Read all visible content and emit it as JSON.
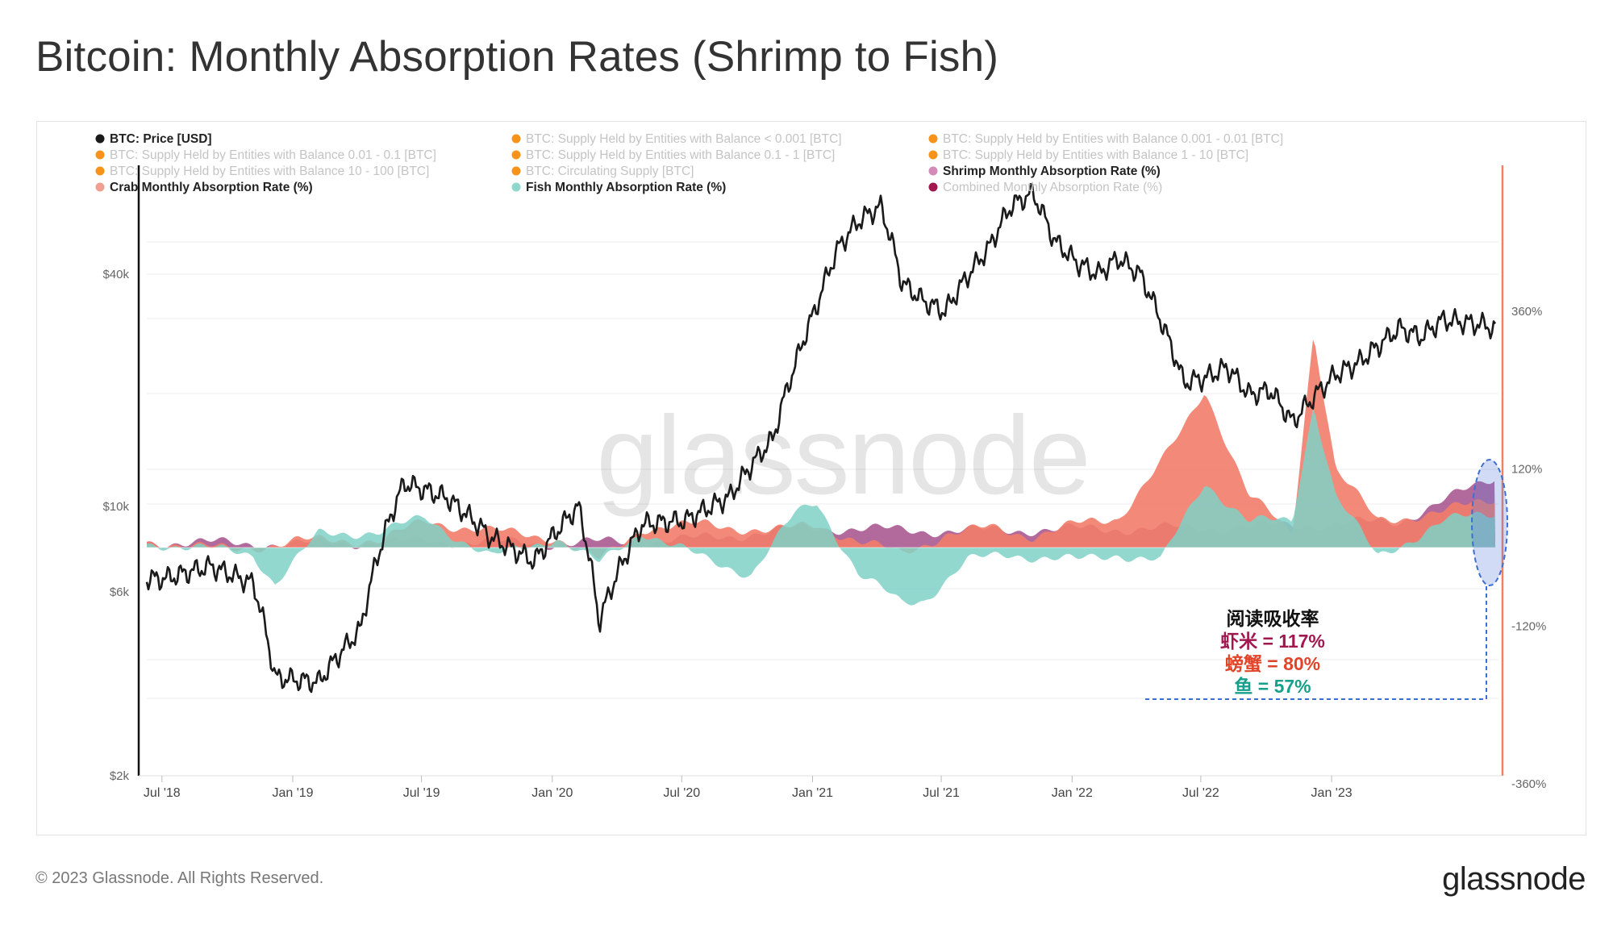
{
  "title": "Bitcoin: Monthly Absorption Rates (Shrimp to Fish)",
  "footer": "© 2023 Glassnode. All Rights Reserved.",
  "brand": "glassnode",
  "watermark": "glassnode",
  "colors": {
    "price": "#1a1a1a",
    "crab": "#f27d6a",
    "fish": "#7fd1c7",
    "shrimp": "#a4508b",
    "combined": "#a0184f",
    "supply_dot": "#f7931a",
    "right_axis": "#f08060",
    "annotation_box": "#3b6fd4"
  },
  "legend": [
    {
      "label": "BTC: Price [USD]",
      "dot": "#1a1a1a",
      "active": true
    },
    {
      "label": "BTC: Supply Held by Entities with Balance < 0.001 [BTC]",
      "dot": "#f7931a",
      "active": false
    },
    {
      "label": "BTC: Supply Held by Entities with Balance 0.001 - 0.01 [BTC]",
      "dot": "#f7931a",
      "active": false
    },
    {
      "label": "BTC: Supply Held by Entities with Balance 0.01 - 0.1 [BTC]",
      "dot": "#f7931a",
      "active": false
    },
    {
      "label": "BTC: Supply Held by Entities with Balance 0.1 - 1 [BTC]",
      "dot": "#f7931a",
      "active": false
    },
    {
      "label": "BTC: Supply Held by Entities with Balance 1 - 10 [BTC]",
      "dot": "#f7931a",
      "active": false
    },
    {
      "label": "BTC: Supply Held by Entities with Balance 10 - 100 [BTC]",
      "dot": "#f7931a",
      "active": false
    },
    {
      "label": "BTC: Circulating Supply [BTC]",
      "dot": "#f7931a",
      "active": false
    },
    {
      "label": "Shrimp Monthly Absorption Rate (%)",
      "dot": "#d38bb8",
      "active": true
    },
    {
      "label": "Crab Monthly Absorption Rate (%)",
      "dot": "#f0a090",
      "active": true
    },
    {
      "label": "Fish Monthly Absorption Rate (%)",
      "dot": "#8fd6cc",
      "active": true
    },
    {
      "label": "Combined Monthly Absorption Rate (%)",
      "dot": "#a0184f",
      "active": false
    }
  ],
  "annotation": {
    "heading": "阅读吸收率",
    "lines": [
      {
        "text": "虾米 = 117%",
        "color": "#a0184f"
      },
      {
        "text": "螃蟹 = 80%",
        "color": "#e0452a"
      },
      {
        "text": "鱼 = 57%",
        "color": "#16a08c"
      }
    ]
  },
  "chart_data": {
    "type": "line",
    "x_ticks": [
      "Jul '18",
      "Jan '19",
      "Jul '19",
      "Jan '20",
      "Jul '20",
      "Jan '21",
      "Jul '21",
      "Jan '22",
      "Jul '22",
      "Jan '23"
    ],
    "y_left": {
      "scale": "log",
      "ticks": [
        "$40k",
        "$10k",
        "$6k",
        "$2k"
      ],
      "tick_values": [
        40000,
        10000,
        6000,
        2000
      ]
    },
    "y_right": {
      "ticks": [
        "360%",
        "120%",
        "-120%",
        "-360%"
      ],
      "tick_values": [
        360,
        120,
        -120,
        -360
      ],
      "range": [
        -360,
        360
      ]
    },
    "series": [
      {
        "name": "BTC: Price [USD]",
        "axis": "left",
        "type": "line",
        "dates": [
          "2018-07",
          "2018-09",
          "2018-11",
          "2018-12",
          "2019-02",
          "2019-04",
          "2019-06",
          "2019-08",
          "2019-10",
          "2019-12",
          "2020-02",
          "2020-03",
          "2020-05",
          "2020-07",
          "2020-09",
          "2020-11",
          "2020-12",
          "2021-01",
          "2021-02",
          "2021-03",
          "2021-04",
          "2021-05",
          "2021-06",
          "2021-07",
          "2021-09",
          "2021-10",
          "2021-11",
          "2021-12",
          "2022-01",
          "2022-02",
          "2022-03",
          "2022-04",
          "2022-05",
          "2022-06",
          "2022-07",
          "2022-08",
          "2022-09",
          "2022-10",
          "2022-11",
          "2023-01",
          "2023-02",
          "2023-03",
          "2023-04",
          "2023-05",
          "2023-06",
          "2023-08",
          "2023-09"
        ],
        "values": [
          6500,
          7000,
          6300,
          3600,
          3500,
          4800,
          11500,
          10500,
          8300,
          7200,
          10000,
          5000,
          9000,
          9200,
          10600,
          15000,
          23000,
          33000,
          47000,
          55000,
          60000,
          38000,
          34000,
          32000,
          47000,
          60000,
          65000,
          49000,
          43000,
          40000,
          44000,
          40000,
          30000,
          21000,
          21500,
          23000,
          19500,
          20000,
          16500,
          22000,
          23500,
          26000,
          29000,
          27500,
          30500,
          29500,
          27500
        ]
      },
      {
        "name": "Shrimp Monthly Absorption Rate (%)",
        "axis": "right",
        "type": "area",
        "dates": [
          "2018-07",
          "2019-01",
          "2019-07",
          "2020-01",
          "2020-07",
          "2021-01",
          "2021-07",
          "2022-01",
          "2022-07",
          "2022-12",
          "2023-04",
          "2023-09"
        ],
        "values": [
          8,
          5,
          10,
          6,
          12,
          30,
          25,
          28,
          30,
          35,
          40,
          117
        ]
      },
      {
        "name": "Crab Monthly Absorption Rate (%)",
        "axis": "right",
        "type": "area",
        "dates": [
          "2018-07",
          "2018-10",
          "2019-01",
          "2019-05",
          "2019-07",
          "2019-10",
          "2020-01",
          "2020-03",
          "2020-05",
          "2020-08",
          "2020-11",
          "2021-01",
          "2021-03",
          "2021-05",
          "2021-07",
          "2021-09",
          "2021-11",
          "2022-01",
          "2022-03",
          "2022-05",
          "2022-06",
          "2022-07",
          "2022-09",
          "2022-11",
          "2022-12",
          "2023-01",
          "2023-03",
          "2023-06",
          "2023-09"
        ],
        "values": [
          8,
          -4,
          10,
          12,
          40,
          25,
          15,
          -20,
          30,
          35,
          25,
          35,
          10,
          -10,
          20,
          30,
          18,
          35,
          45,
          130,
          180,
          240,
          80,
          20,
          330,
          120,
          40,
          55,
          80
        ]
      },
      {
        "name": "Fish Monthly Absorption Rate (%)",
        "axis": "right",
        "type": "area",
        "dates": [
          "2018-07",
          "2018-11",
          "2018-12",
          "2019-02",
          "2019-05",
          "2019-07",
          "2019-10",
          "2020-01",
          "2020-03",
          "2020-05",
          "2020-08",
          "2020-10",
          "2020-12",
          "2021-01",
          "2021-03",
          "2021-05",
          "2021-06",
          "2021-08",
          "2021-10",
          "2022-01",
          "2022-03",
          "2022-05",
          "2022-07",
          "2022-09",
          "2022-11",
          "2022-12",
          "2023-01",
          "2023-03",
          "2023-06",
          "2023-09"
        ],
        "values": [
          5,
          -10,
          -55,
          20,
          25,
          45,
          -15,
          15,
          -25,
          25,
          -20,
          -40,
          50,
          70,
          -40,
          -85,
          -80,
          -20,
          -10,
          -20,
          -10,
          -20,
          100,
          40,
          40,
          220,
          80,
          -15,
          40,
          57
        ]
      }
    ]
  }
}
